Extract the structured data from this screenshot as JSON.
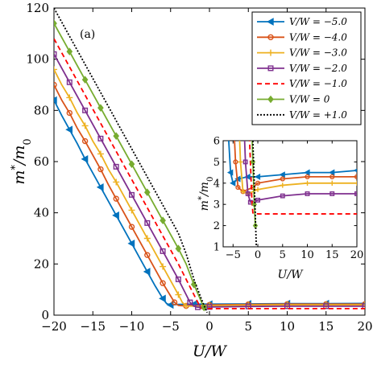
{
  "chart_data": [
    {
      "type": "line",
      "panel_label": "(a)",
      "xlabel": "U/W",
      "ylabel": "m*/m0",
      "xlim": [
        -20,
        20
      ],
      "ylim": [
        0,
        120
      ],
      "xticks": [
        -20,
        -15,
        -10,
        -5,
        0,
        5,
        10,
        15,
        20
      ],
      "yticks": [
        0,
        20,
        40,
        60,
        80,
        100,
        120
      ],
      "grid": false,
      "legend_position": "top-right",
      "series": [
        {
          "name": "V/W = −5.0",
          "color": "#0072BD",
          "marker": "triangle-left",
          "dash": "solid",
          "points": [
            [
              -20,
              84
            ],
            [
              -19,
              78
            ],
            [
              -18,
              72.5
            ],
            [
              -17,
              67
            ],
            [
              -16,
              61
            ],
            [
              -15,
              55.5
            ],
            [
              -14,
              50
            ],
            [
              -13,
              44.5
            ],
            [
              -12,
              39
            ],
            [
              -11,
              33.5
            ],
            [
              -10,
              28
            ],
            [
              -9,
              22.5
            ],
            [
              -8,
              17
            ],
            [
              -7,
              11.5
            ],
            [
              -6,
              6.5
            ],
            [
              -5.5,
              4.5
            ],
            [
              -5,
              4
            ],
            [
              -4,
              4.2
            ],
            [
              -2,
              4.3
            ],
            [
              0,
              4.3
            ],
            [
              5,
              4.4
            ],
            [
              10,
              4.5
            ],
            [
              15,
              4.5
            ],
            [
              20,
              4.6
            ]
          ]
        },
        {
          "name": "V/W = −4.0",
          "color": "#D95319",
          "marker": "circle",
          "dash": "solid",
          "points": [
            [
              -20,
              90
            ],
            [
              -19,
              84
            ],
            [
              -18,
              79
            ],
            [
              -17,
              73
            ],
            [
              -16,
              68
            ],
            [
              -15,
              62.5
            ],
            [
              -14,
              57
            ],
            [
              -13,
              51
            ],
            [
              -12,
              45.5
            ],
            [
              -11,
              40
            ],
            [
              -10,
              34.5
            ],
            [
              -9,
              29
            ],
            [
              -8,
              23.5
            ],
            [
              -7,
              18
            ],
            [
              -6,
              12.5
            ],
            [
              -5,
              7.5
            ],
            [
              -4.5,
              5
            ],
            [
              -4,
              3.8
            ],
            [
              -3,
              3.6
            ],
            [
              -1,
              3.8
            ],
            [
              0,
              4
            ],
            [
              5,
              4.2
            ],
            [
              10,
              4.3
            ],
            [
              15,
              4.3
            ],
            [
              20,
              4.3
            ]
          ]
        },
        {
          "name": "V/W = −3.0",
          "color": "#EDB120",
          "marker": "plus",
          "dash": "solid",
          "points": [
            [
              -20,
              96
            ],
            [
              -19,
              90
            ],
            [
              -18,
              85
            ],
            [
              -17,
              79
            ],
            [
              -16,
              74
            ],
            [
              -15,
              68
            ],
            [
              -14,
              63
            ],
            [
              -13,
              57
            ],
            [
              -12,
              52
            ],
            [
              -11,
              46.5
            ],
            [
              -10,
              41
            ],
            [
              -9,
              35.5
            ],
            [
              -8,
              30
            ],
            [
              -7,
              24.5
            ],
            [
              -6,
              19
            ],
            [
              -5,
              13.5
            ],
            [
              -4,
              8
            ],
            [
              -3.5,
              5
            ],
            [
              -3,
              3.6
            ],
            [
              -2,
              3.5
            ],
            [
              0,
              3.7
            ],
            [
              5,
              3.9
            ],
            [
              10,
              4
            ],
            [
              15,
              4
            ],
            [
              20,
              4
            ]
          ]
        },
        {
          "name": "V/W = −2.0",
          "color": "#7E2F8E",
          "marker": "square",
          "dash": "solid",
          "points": [
            [
              -20,
              102
            ],
            [
              -19,
              96.5
            ],
            [
              -18,
              91
            ],
            [
              -17,
              85.5
            ],
            [
              -16,
              80
            ],
            [
              -15,
              74.5
            ],
            [
              -14,
              69
            ],
            [
              -13,
              63.5
            ],
            [
              -12,
              58
            ],
            [
              -11,
              52.5
            ],
            [
              -10,
              47
            ],
            [
              -9,
              41.5
            ],
            [
              -8,
              36
            ],
            [
              -7,
              30.5
            ],
            [
              -6,
              25
            ],
            [
              -5,
              19.5
            ],
            [
              -4,
              14
            ],
            [
              -3,
              8
            ],
            [
              -2.5,
              5
            ],
            [
              -2,
              3.5
            ],
            [
              -1.5,
              3.1
            ],
            [
              0,
              3.2
            ],
            [
              5,
              3.4
            ],
            [
              10,
              3.5
            ],
            [
              15,
              3.5
            ],
            [
              20,
              3.5
            ]
          ]
        },
        {
          "name": "V/W = −1.0",
          "color": "#FF0000",
          "marker": "none",
          "dash": "dashed",
          "points": [
            [
              -20,
              108
            ],
            [
              -19,
              102.5
            ],
            [
              -18,
              97
            ],
            [
              -17,
              91.5
            ],
            [
              -16,
              86
            ],
            [
              -15,
              80.5
            ],
            [
              -14,
              75
            ],
            [
              -13,
              69.5
            ],
            [
              -12,
              64
            ],
            [
              -11,
              58.5
            ],
            [
              -10,
              53
            ],
            [
              -9,
              47.5
            ],
            [
              -8,
              42
            ],
            [
              -7,
              36.5
            ],
            [
              -6,
              31
            ],
            [
              -5,
              25.5
            ],
            [
              -4,
              20
            ],
            [
              -3,
              14
            ],
            [
              -2,
              8
            ],
            [
              -1.5,
              5
            ],
            [
              -1.2,
              3.2
            ],
            [
              -1,
              2.6
            ],
            [
              0,
              2.55
            ],
            [
              5,
              2.55
            ],
            [
              10,
              2.55
            ],
            [
              15,
              2.55
            ],
            [
              20,
              2.55
            ]
          ]
        },
        {
          "name": "V/W = 0",
          "color": "#77AC30",
          "marker": "diamond",
          "dash": "solid",
          "points": [
            [
              -20,
              114
            ],
            [
              -19,
              108.5
            ],
            [
              -18,
              103
            ],
            [
              -17,
              97.5
            ],
            [
              -16,
              92
            ],
            [
              -15,
              86.5
            ],
            [
              -14,
              81
            ],
            [
              -13,
              75.5
            ],
            [
              -12,
              70
            ],
            [
              -11,
              64.5
            ],
            [
              -10,
              59
            ],
            [
              -9,
              53.5
            ],
            [
              -8,
              48
            ],
            [
              -7,
              42.5
            ],
            [
              -6,
              37
            ],
            [
              -5,
              31.5
            ],
            [
              -4,
              26
            ],
            [
              -3,
              20
            ],
            [
              -2,
              12
            ],
            [
              -1,
              5
            ],
            [
              -0.7,
              3
            ],
            [
              -0.5,
              2
            ]
          ]
        },
        {
          "name": "V/W = +1.0",
          "color": "#000000",
          "marker": "none",
          "dash": "dotted",
          "points": [
            [
              -20,
              120
            ],
            [
              -19,
              114.5
            ],
            [
              -18,
              109
            ],
            [
              -17,
              103.5
            ],
            [
              -16,
              98
            ],
            [
              -15,
              92.5
            ],
            [
              -14,
              87
            ],
            [
              -13,
              81.5
            ],
            [
              -12,
              76
            ],
            [
              -11,
              70.5
            ],
            [
              -10,
              65
            ],
            [
              -9,
              59.5
            ],
            [
              -8,
              54
            ],
            [
              -7,
              48.5
            ],
            [
              -6,
              43
            ],
            [
              -5,
              37.5
            ],
            [
              -4,
              32
            ],
            [
              -3,
              24
            ],
            [
              -2,
              14
            ],
            [
              -1,
              6
            ],
            [
              -0.3,
              1
            ]
          ]
        }
      ]
    },
    {
      "type": "line",
      "role": "inset",
      "xlabel": "U/W",
      "ylabel": "m*/m0",
      "xlim": [
        -7,
        20
      ],
      "ylim": [
        1,
        6
      ],
      "xticks": [
        -5,
        0,
        5,
        10,
        15,
        20
      ],
      "yticks": [
        1,
        2,
        3,
        4,
        5,
        6
      ],
      "grid": false
    }
  ]
}
